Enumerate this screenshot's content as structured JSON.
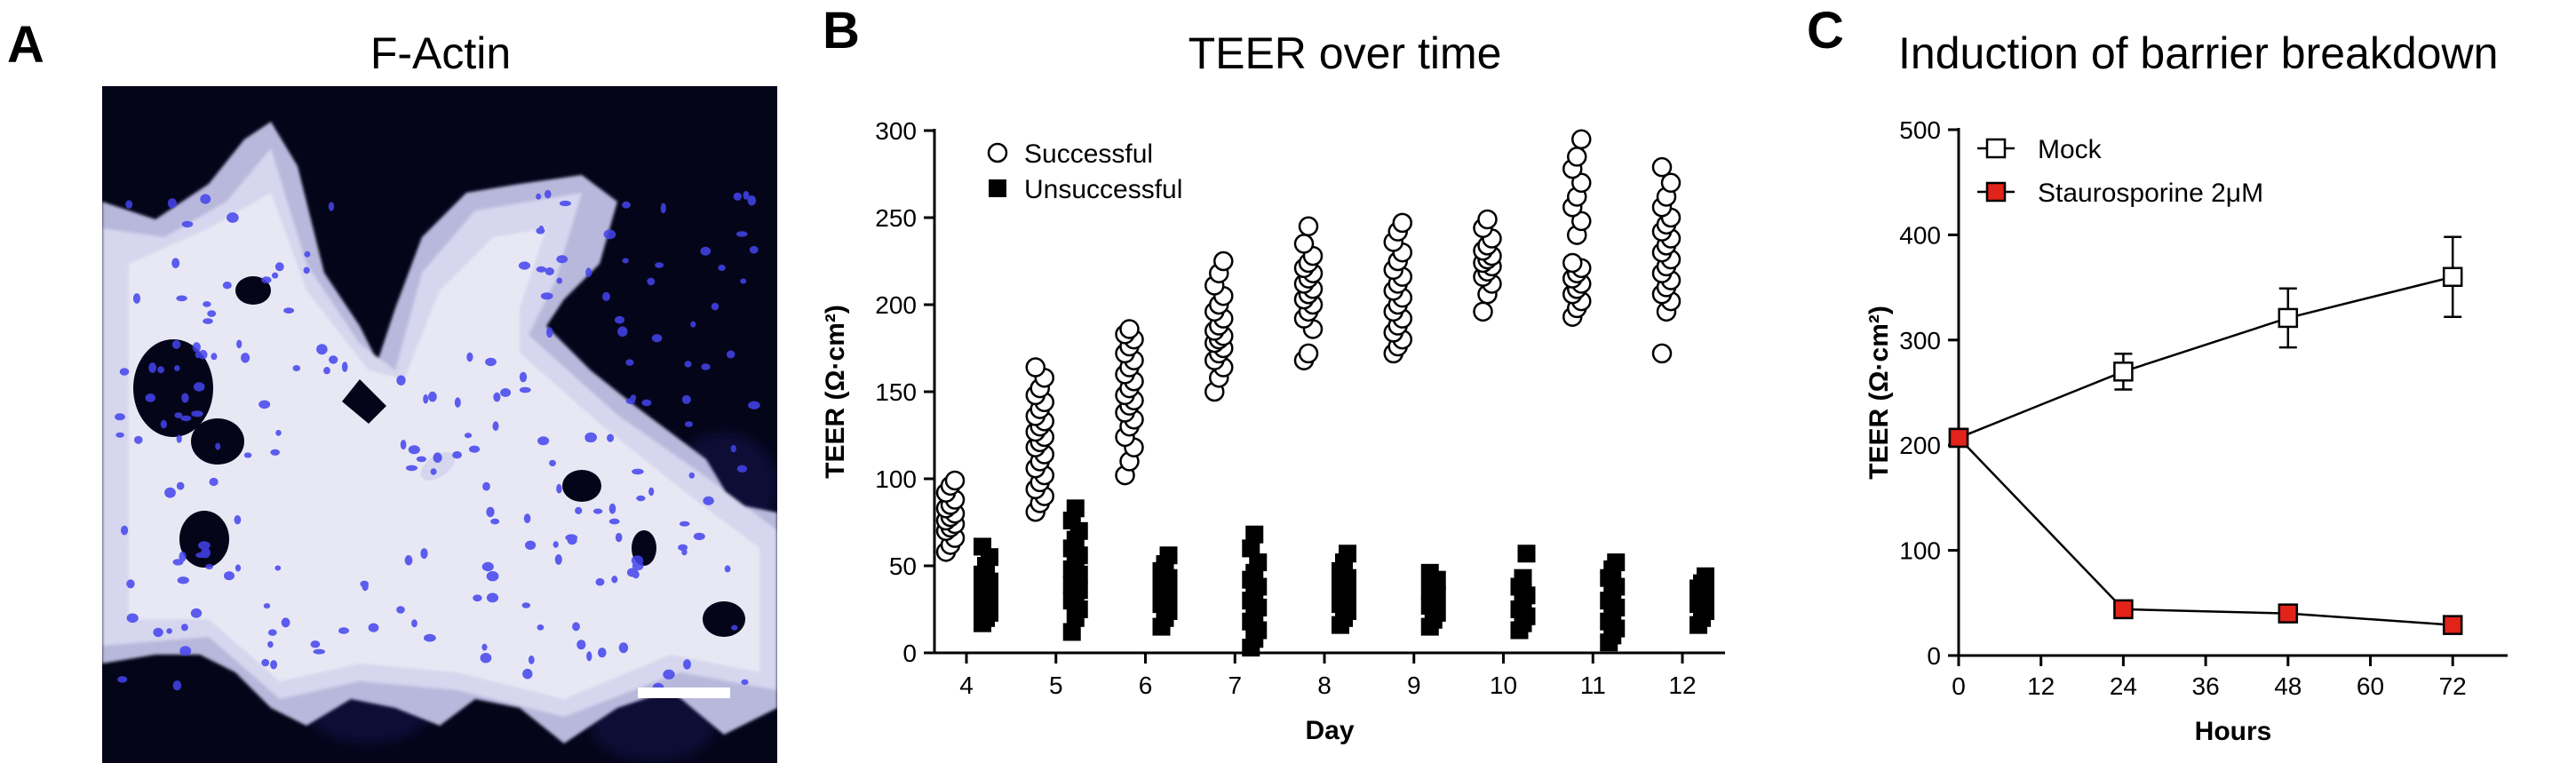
{
  "panels": {
    "a": {
      "letter": "A",
      "title": "F-Actin"
    },
    "b": {
      "letter": "B",
      "title": "TEER over time"
    },
    "c": {
      "letter": "C",
      "title": "Induction of barrier breakdown"
    }
  },
  "colors": {
    "micrograph_background": "#05051a",
    "actin_stain": "#e8e8f4",
    "nuclei_stain": "#4444ee",
    "staurosporine_marker": "#e2231a"
  },
  "chart_data": [
    {
      "type": "scatter",
      "title": "TEER over time",
      "xlabel": "Day",
      "ylabel": "TEER (Ω·cm²)",
      "ylim": [
        0,
        300
      ],
      "yticks": [
        0,
        50,
        100,
        150,
        200,
        250,
        300
      ],
      "categories": [
        "4",
        "5",
        "6",
        "7",
        "8",
        "9",
        "10",
        "11",
        "12"
      ],
      "legend_position": "top-left",
      "series": [
        {
          "name": "Successful",
          "marker": "open-circle",
          "values": [
            [
              58,
              62,
              66,
              70,
              72,
              74,
              76,
              78,
              80,
              83,
              85,
              88,
              92,
              96,
              99
            ],
            [
              81,
              86,
              90,
              94,
              98,
              102,
              106,
              110,
              114,
              118,
              121,
              124,
              127,
              130,
              133,
              136,
              140,
              144,
              148,
              152,
              158,
              164
            ],
            [
              102,
              110,
              118,
              124,
              130,
              134,
              138,
              142,
              145,
              148,
              152,
              156,
              160,
              164,
              168,
              172,
              176,
              180,
              183,
              186
            ],
            [
              150,
              158,
              164,
              168,
              172,
              175,
              178,
              180,
              182,
              185,
              188,
              192,
              196,
              200,
              205,
              211,
              218,
              225
            ],
            [
              168,
              172,
              186,
              192,
              196,
              200,
              203,
              206,
              209,
              212,
              215,
              218,
              221,
              224,
              228,
              235,
              245
            ],
            [
              172,
              176,
              180,
              184,
              188,
              192,
              196,
              200,
              204,
              208,
              212,
              216,
              220,
              225,
              230,
              236,
              242,
              247
            ],
            [
              196,
              206,
              212,
              216,
              219,
              222,
              224,
              226,
              228,
              231,
              234,
              238,
              244,
              249
            ],
            [
              193,
              198,
              202,
              206,
              209,
              212,
              215,
              218,
              221,
              224,
              240,
              248,
              256,
              262,
              270,
              278,
              285,
              295
            ],
            [
              172,
              196,
              202,
              206,
              210,
              214,
              218,
              222,
              226,
              230,
              234,
              238,
              242,
              246,
              250,
              256,
              262,
              270,
              279
            ]
          ]
        },
        {
          "name": "Unsuccessful",
          "marker": "filled-square",
          "values": [
            [
              17,
              20,
              23,
              26,
              29,
              32,
              35,
              38,
              41,
              45,
              50,
              55,
              61
            ],
            [
              12,
              20,
              25,
              30,
              33,
              36,
              39,
              42,
              45,
              48,
              52,
              56,
              60,
              65,
              70,
              76,
              83
            ],
            [
              15,
              20,
              24,
              28,
              31,
              34,
              37,
              40,
              43,
              47,
              51,
              56
            ],
            [
              3,
              8,
              13,
              18,
              22,
              26,
              30,
              34,
              38,
              42,
              46,
              52,
              60,
              68
            ],
            [
              16,
              20,
              24,
              28,
              31,
              34,
              37,
              40,
              43,
              47,
              52,
              57
            ],
            [
              15,
              19,
              23,
              27,
              30,
              33,
              36,
              39,
              42,
              46
            ],
            [
              13,
              17,
              21,
              25,
              29,
              33,
              38,
              43,
              57
            ],
            [
              6,
              10,
              14,
              18,
              22,
              26,
              30,
              34,
              38,
              43,
              48,
              52
            ],
            [
              16,
              20,
              24,
              28,
              31,
              34,
              37,
              40,
              44
            ]
          ]
        }
      ]
    },
    {
      "type": "line",
      "title": "Induction of barrier breakdown",
      "xlabel": "Hours",
      "ylabel": "TEER (Ω·cm²)",
      "xlim": [
        0,
        80
      ],
      "ylim": [
        0,
        500
      ],
      "xticks": [
        0,
        12,
        24,
        36,
        48,
        60,
        72
      ],
      "yticks": [
        0,
        100,
        200,
        300,
        400,
        500
      ],
      "legend_position": "top-left",
      "series": [
        {
          "name": "Mock",
          "marker": "open-square",
          "color": "#ffffff",
          "x": [
            0,
            24,
            48,
            72
          ],
          "y": [
            207,
            270,
            321,
            360
          ],
          "error": [
            8,
            17,
            28,
            38
          ]
        },
        {
          "name": "Staurosporine 2μM",
          "marker": "filled-square",
          "color": "#e2231a",
          "x": [
            0,
            24,
            48,
            72
          ],
          "y": [
            207,
            44,
            40,
            29
          ],
          "error": [
            0,
            0,
            0,
            0
          ]
        }
      ]
    }
  ]
}
